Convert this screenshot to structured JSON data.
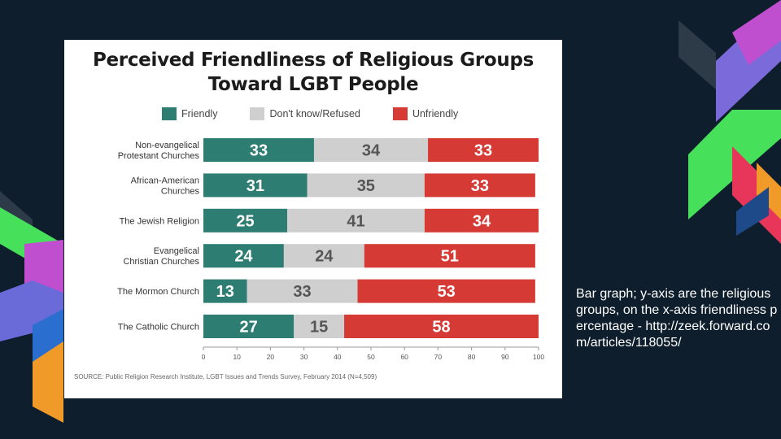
{
  "chart_data": {
    "type": "bar",
    "stacked": true,
    "orientation": "horizontal",
    "title": "Perceived Friendliness of Religious Groups Toward LGBT People",
    "title_lines": [
      "Perceived Friendliness of Religious Groups",
      "Toward LGBT People"
    ],
    "categories": [
      [
        "Non-evangelical",
        "Protestant Churches"
      ],
      [
        "African-American",
        "Churches"
      ],
      [
        "The Jewish Religion"
      ],
      [
        "Evangelical",
        "Christian Churches"
      ],
      [
        "The Mormon Church"
      ],
      [
        "The Catholic Church"
      ]
    ],
    "series": [
      {
        "name": "Friendly",
        "color": "#2e7d72",
        "label_color": "#ffffff",
        "values": [
          33,
          31,
          25,
          24,
          13,
          27
        ]
      },
      {
        "name": "Don't know/Refused",
        "color": "#cfcfcf",
        "label_color": "#555555",
        "values": [
          34,
          35,
          41,
          24,
          33,
          15
        ]
      },
      {
        "name": "Unfriendly",
        "color": "#d63a34",
        "label_color": "#ffffff",
        "values": [
          33,
          33,
          34,
          51,
          53,
          58
        ]
      }
    ],
    "xlim": [
      0,
      100
    ],
    "xticks": [
      0,
      10,
      20,
      30,
      40,
      50,
      60,
      70,
      80,
      90,
      100
    ],
    "legend_position": "top",
    "grid": false,
    "source": "SOURCE: Public Religion Research Institute, LGBT Issues and Trends Survey, February 2014 (N=4,509)"
  },
  "caption": "Bar graph; y-axis are the religious groups, on the x-axis friendliness percentage - http://zeek.forward.com/articles/118055/",
  "colors": {
    "background": "#0e1e2c",
    "friendly": "#2e7d72",
    "dont_know": "#cfcfcf",
    "unfriendly": "#d63a34"
  }
}
